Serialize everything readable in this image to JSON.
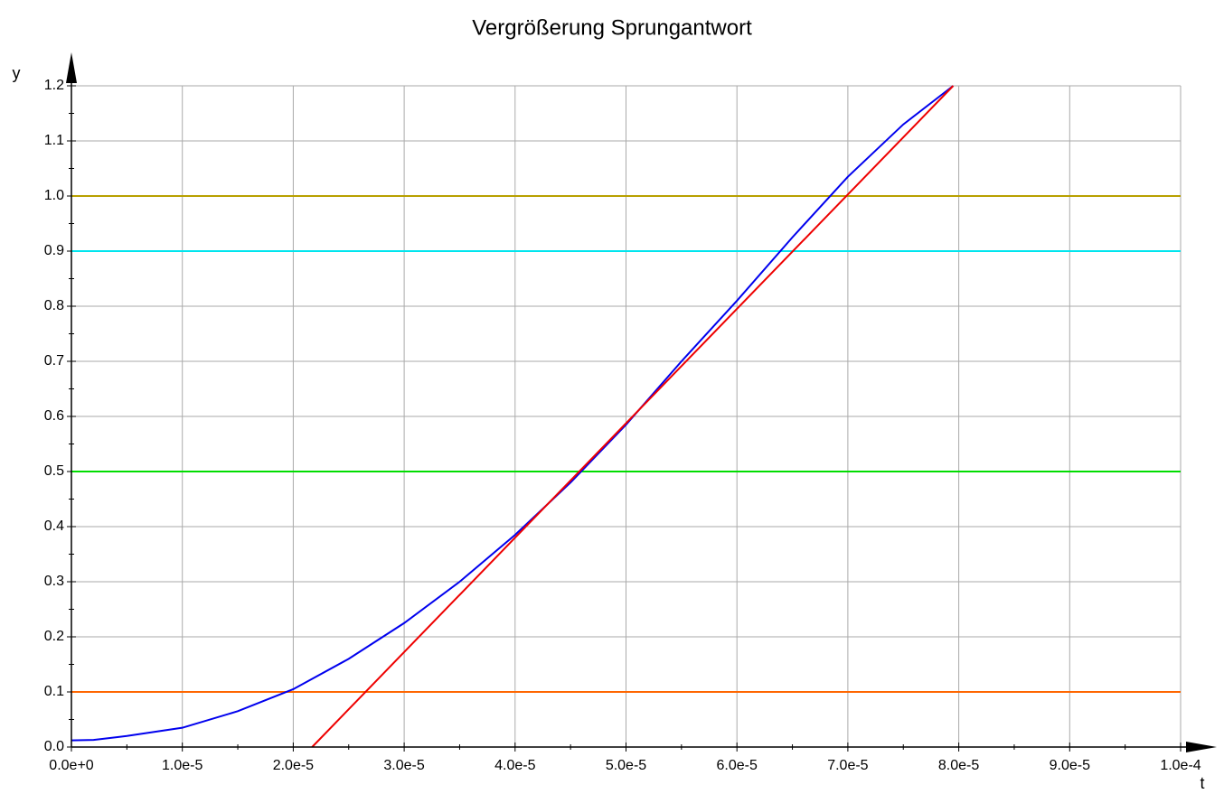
{
  "chart_data": {
    "type": "line",
    "title": "Vergrößerung Sprungantwort",
    "xlabel": "t",
    "ylabel": "y",
    "xlim": [
      0,
      0.0001
    ],
    "ylim": [
      0,
      1.2
    ],
    "xticks": [
      {
        "value": 0,
        "label": "0.0e+0"
      },
      {
        "value": 1e-05,
        "label": "1.0e-5"
      },
      {
        "value": 2e-05,
        "label": "2.0e-5"
      },
      {
        "value": 3e-05,
        "label": "3.0e-5"
      },
      {
        "value": 4e-05,
        "label": "4.0e-5"
      },
      {
        "value": 5e-05,
        "label": "5.0e-5"
      },
      {
        "value": 6e-05,
        "label": "6.0e-5"
      },
      {
        "value": 7e-05,
        "label": "7.0e-5"
      },
      {
        "value": 8e-05,
        "label": "8.0e-5"
      },
      {
        "value": 9e-05,
        "label": "9.0e-5"
      },
      {
        "value": 0.0001,
        "label": "1.0e-4"
      }
    ],
    "yticks": [
      {
        "value": 0,
        "label": "0.0"
      },
      0.1,
      0.2,
      0.3,
      0.4,
      0.5,
      0.6,
      0.7,
      0.8,
      0.9,
      {
        "value": 1,
        "label": "1.0"
      },
      1.1,
      1.2
    ],
    "grid": true,
    "series": [
      {
        "color": "#b8a000",
        "x": [
          0,
          0.0001
        ],
        "values": [
          1,
          1
        ]
      },
      {
        "color": "#00e5ee",
        "x": [
          0,
          0.0001
        ],
        "values": [
          0.9,
          0.9
        ]
      },
      {
        "color": "#00dd00",
        "x": [
          0,
          0.0001
        ],
        "values": [
          0.5,
          0.5
        ]
      },
      {
        "color": "#ff6600",
        "x": [
          0,
          0.0001
        ],
        "values": [
          0.1,
          0.1
        ]
      },
      {
        "color": "#0000ee",
        "x": [
          0,
          2e-06,
          5e-06,
          1e-05,
          1.5e-05,
          2e-05,
          2.5e-05,
          3e-05,
          3.5e-05,
          4e-05,
          4.5e-05,
          5e-05,
          5.5e-05,
          6e-05,
          6.5e-05,
          7e-05,
          7.5e-05,
          7.95e-05
        ],
        "values": [
          0.012,
          0.013,
          0.02,
          0.035,
          0.065,
          0.105,
          0.16,
          0.225,
          0.3,
          0.385,
          0.48,
          0.585,
          0.7,
          0.81,
          0.925,
          1.035,
          1.13,
          1.2
        ]
      },
      {
        "color": "#ee0000",
        "x": [
          2.17e-05,
          7.95e-05
        ],
        "values": [
          0,
          1.2
        ]
      }
    ]
  }
}
